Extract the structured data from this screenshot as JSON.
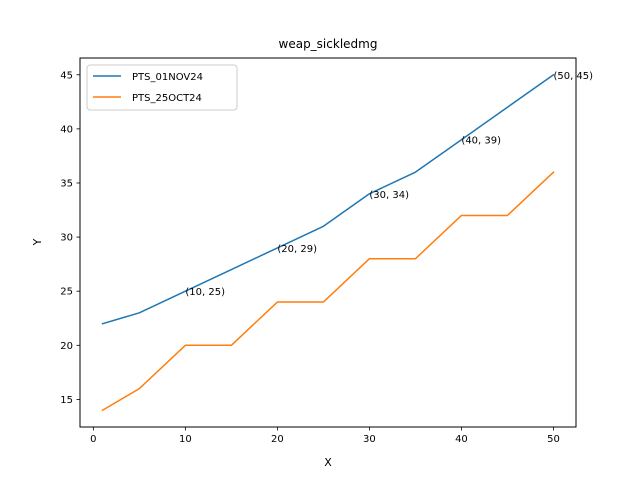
{
  "chart_data": {
    "type": "line",
    "title": "weap_sickledmg",
    "xlabel": "X",
    "ylabel": "Y",
    "xlim": [
      -1.45,
      52.45
    ],
    "ylim": [
      12.45,
      46.55
    ],
    "xticks": [
      0,
      10,
      20,
      30,
      40,
      50
    ],
    "yticks": [
      15,
      20,
      25,
      30,
      35,
      40,
      45
    ],
    "grid": false,
    "legend_position": "top-left",
    "series": [
      {
        "name": "PTS_01NOV24",
        "color": "#1f77b4",
        "x": [
          1,
          5,
          10,
          15,
          20,
          25,
          30,
          35,
          40,
          45,
          50
        ],
        "y": [
          22,
          23,
          25,
          27,
          29,
          31,
          34,
          36,
          39,
          42,
          45
        ]
      },
      {
        "name": "PTS_25OCT24",
        "color": "#ff7f0e",
        "x": [
          1,
          5,
          10,
          15,
          20,
          25,
          30,
          35,
          40,
          45,
          50
        ],
        "y": [
          14,
          16,
          20,
          20,
          24,
          24,
          28,
          28,
          32,
          32,
          36
        ]
      }
    ],
    "annotations": [
      {
        "x": 10,
        "y": 25,
        "text": "(10, 25)"
      },
      {
        "x": 20,
        "y": 29,
        "text": "(20, 29)"
      },
      {
        "x": 30,
        "y": 34,
        "text": "(30, 34)"
      },
      {
        "x": 40,
        "y": 39,
        "text": "(40, 39)"
      },
      {
        "x": 50,
        "y": 45,
        "text": "(50, 45)"
      }
    ]
  }
}
